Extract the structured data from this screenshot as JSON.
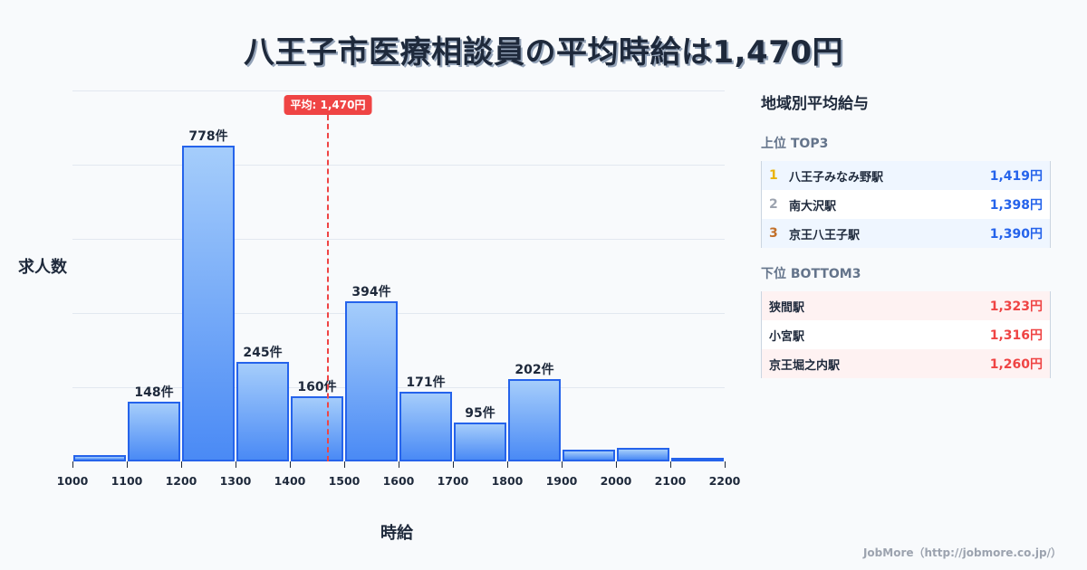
{
  "title": "八王子市医療相談員の平均時給は1,470円",
  "chart_data": {
    "type": "bar",
    "title": "八王子市医療相談員の平均時給は1,470円",
    "xlabel": "時給",
    "ylabel": "求人数",
    "bin_edges": [
      1000,
      1100,
      1200,
      1300,
      1400,
      1500,
      1600,
      1700,
      1800,
      1900,
      2000,
      2100,
      2200
    ],
    "categories": [
      "1000-1100",
      "1100-1200",
      "1200-1300",
      "1300-1400",
      "1400-1500",
      "1500-1600",
      "1600-1700",
      "1700-1800",
      "1800-1900",
      "1900-2000",
      "2000-2100",
      "2100-2200"
    ],
    "values": [
      16,
      148,
      778,
      245,
      160,
      394,
      171,
      95,
      202,
      29,
      33,
      9
    ],
    "labels": [
      "",
      "148件",
      "778件",
      "245件",
      "160件",
      "394件",
      "171件",
      "95件",
      "202件",
      "",
      "",
      ""
    ],
    "xlim": [
      1000,
      2200
    ],
    "ylim": [
      0,
      913
    ],
    "grid": true,
    "gridlines_y": [
      0,
      183,
      365,
      548,
      730,
      913
    ],
    "annotation": {
      "type": "vline",
      "x": 1470,
      "label": "平均: 1,470円",
      "color": "#ef4444"
    },
    "bar_color": "#4a8af5",
    "bar_border": "#2563eb"
  },
  "axis": {
    "ylabel": "求人数",
    "xlabel": "時給",
    "ticks": [
      "1000",
      "1100",
      "1200",
      "1300",
      "1400",
      "1500",
      "1600",
      "1700",
      "1800",
      "1900",
      "2000",
      "2100",
      "2200"
    ]
  },
  "average": {
    "label": "平均: 1,470円",
    "value": 1470
  },
  "panel": {
    "title": "地域別平均給与",
    "top": {
      "title": "上位 TOP3",
      "rows": [
        {
          "rank": "1",
          "name": "八王子みなみ野駅",
          "value": "1,419円",
          "rank_color": "#eab308"
        },
        {
          "rank": "2",
          "name": "南大沢駅",
          "value": "1,398円",
          "rank_color": "#9ca3af"
        },
        {
          "rank": "3",
          "name": "京王八王子駅",
          "value": "1,390円",
          "rank_color": "#c2702a"
        }
      ]
    },
    "bottom": {
      "title": "下位 BOTTOM3",
      "rows": [
        {
          "name": "狭間駅",
          "value": "1,323円"
        },
        {
          "name": "小宮駅",
          "value": "1,316円"
        },
        {
          "name": "京王堀之内駅",
          "value": "1,260円"
        }
      ]
    }
  },
  "footer": "JobMore（http://jobmore.co.jp/）"
}
